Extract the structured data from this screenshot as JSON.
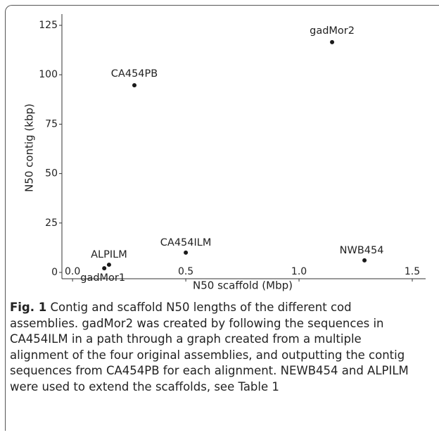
{
  "chart_data": {
    "type": "scatter",
    "xlabel": "N50 scaffold (Mbp)",
    "ylabel": "N50 contig (kbp)",
    "labels": [
      "gadMor2",
      "CA454PB",
      "CA454ILM",
      "NWB454",
      "ALPILM",
      "gadMor1"
    ],
    "x": [
      1.146,
      0.273,
      0.5,
      1.289,
      0.161,
      0.14
    ],
    "values": [
      116.5,
      94.7,
      10.0,
      6.1,
      3.9,
      2.1
    ],
    "color": "#1a1a1a",
    "xlim": [
      -0.047,
      1.559
    ],
    "ylim": [
      -3.2,
      130.7
    ],
    "xticks": [
      {
        "value": 0,
        "label": "0.0"
      },
      0.5,
      {
        "value": 1,
        "label": "1.0"
      },
      1.5
    ],
    "yticks": [
      0,
      25,
      50,
      75,
      100,
      125
    ],
    "grid": false
  },
  "caption": {
    "label": "Fig. 1",
    "lines": [
      "Contig and scaffold N50 lengths of the different cod",
      "assemblies. gadMor2 was created by following the sequences in",
      "CA454ILM in a path through a graph created from a multiple",
      "alignment of the four original assemblies, and outputting the contig",
      "sequences from CA454PB for each alignment. NEWB454 and ALPILM",
      "were used to extend the scaffolds, see Table 1"
    ]
  }
}
